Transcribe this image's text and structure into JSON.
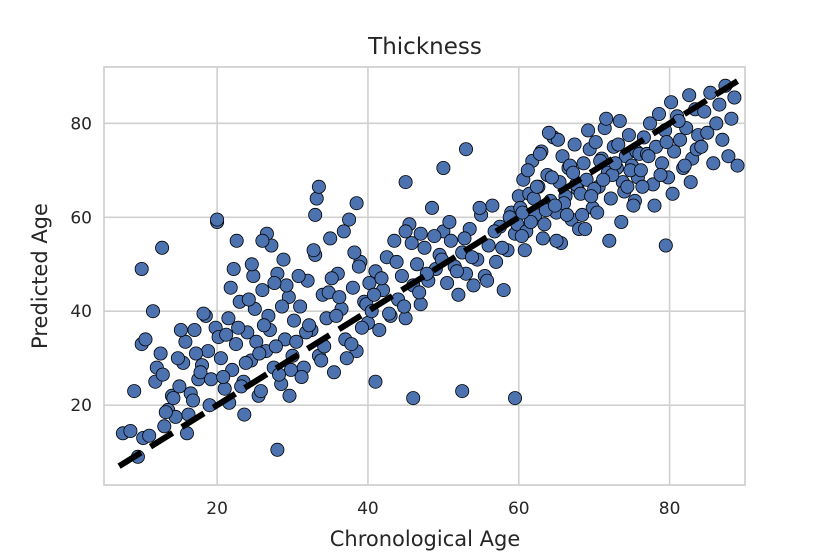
{
  "chart_data": {
    "type": "scatter",
    "title": "Thickness",
    "xlabel": "Chronological Age",
    "ylabel": "Predicted Age",
    "xlim": [
      5,
      90
    ],
    "ylim": [
      3,
      92
    ],
    "xticks": [
      20,
      40,
      60,
      80
    ],
    "yticks": [
      20,
      40,
      60,
      80
    ],
    "grid": true,
    "marker_color": "#4c72b0",
    "marker_edge_color": "#000000",
    "reference_line": {
      "style": "dashed",
      "color": "#000000",
      "x": [
        7,
        89
      ],
      "y": [
        7,
        89
      ]
    },
    "x": [
      7.5,
      8.5,
      9.5,
      10.2,
      11.0,
      11.8,
      12.5,
      13.0,
      13.5,
      14.0,
      14.5,
      15.0,
      15.5,
      16.0,
      16.5,
      17.0,
      17.5,
      18.0,
      18.5,
      19.0,
      9.0,
      10.0,
      12.0,
      13.2,
      14.8,
      15.8,
      16.8,
      17.8,
      18.8,
      19.8,
      10.5,
      11.5,
      12.8,
      14.2,
      15.2,
      16.2,
      17.2,
      18.2,
      19.2,
      20.2,
      20.5,
      21.0,
      21.5,
      22.0,
      22.5,
      23.0,
      23.5,
      24.0,
      24.5,
      25.0,
      25.5,
      26.0,
      26.5,
      27.0,
      27.5,
      28.0,
      28.5,
      29.0,
      29.5,
      30.0,
      20.8,
      21.8,
      22.8,
      23.8,
      24.8,
      25.8,
      26.8,
      27.8,
      28.8,
      29.8,
      21.2,
      22.2,
      23.2,
      24.2,
      25.2,
      26.2,
      27.2,
      28.2,
      29.2,
      30.2,
      20.0,
      22.6,
      24.6,
      26.6,
      28.6,
      21.6,
      23.6,
      25.6,
      27.6,
      29.6,
      30.5,
      31.0,
      31.5,
      32.0,
      32.5,
      33.0,
      33.5,
      34.0,
      34.5,
      35.0,
      35.5,
      36.0,
      36.5,
      37.0,
      37.5,
      38.0,
      38.5,
      39.0,
      39.5,
      40.0,
      30.8,
      31.8,
      32.8,
      33.8,
      34.8,
      35.8,
      36.8,
      37.8,
      38.8,
      39.8,
      31.2,
      32.2,
      33.2,
      34.2,
      35.2,
      36.2,
      37.2,
      38.2,
      39.2,
      40.2,
      40.5,
      41.0,
      41.5,
      42.0,
      42.5,
      43.0,
      43.5,
      44.0,
      44.5,
      45.0,
      45.5,
      46.0,
      46.5,
      47.0,
      47.5,
      48.0,
      48.5,
      49.0,
      49.5,
      50.0,
      40.8,
      41.8,
      42.8,
      43.8,
      44.8,
      45.8,
      46.8,
      47.8,
      48.8,
      49.8,
      50.5,
      51.0,
      51.5,
      52.0,
      52.5,
      53.0,
      53.5,
      54.0,
      54.5,
      55.0,
      55.5,
      56.0,
      56.5,
      57.0,
      57.5,
      58.0,
      58.5,
      59.0,
      59.5,
      60.0,
      50.8,
      51.8,
      52.8,
      53.8,
      54.8,
      55.8,
      56.8,
      57.8,
      58.8,
      59.8,
      60.2,
      60.6,
      61.0,
      61.4,
      61.8,
      62.2,
      62.6,
      63.0,
      63.4,
      63.8,
      64.2,
      64.6,
      65.0,
      65.4,
      65.8,
      66.2,
      66.6,
      67.0,
      67.4,
      67.8,
      60.4,
      61.2,
      62.0,
      62.8,
      63.6,
      64.4,
      65.2,
      66.0,
      66.8,
      67.6,
      60.8,
      61.6,
      62.4,
      63.2,
      64.0,
      64.8,
      65.6,
      66.4,
      67.2,
      68.0,
      68.2,
      68.6,
      69.0,
      69.4,
      69.8,
      70.2,
      70.6,
      71.0,
      71.4,
      71.8,
      72.2,
      72.6,
      73.0,
      73.4,
      73.8,
      74.2,
      74.6,
      75.0,
      75.4,
      75.8,
      68.4,
      69.2,
      70.0,
      70.8,
      71.6,
      72.4,
      73.2,
      74.0,
      74.8,
      75.6,
      68.8,
      69.6,
      70.4,
      71.2,
      72.0,
      72.8,
      73.6,
      74.4,
      75.2,
      76.0,
      76.2,
      76.6,
      77.0,
      77.4,
      77.8,
      78.2,
      78.6,
      79.0,
      79.4,
      79.8,
      80.2,
      80.6,
      81.0,
      81.4,
      81.8,
      82.2,
      82.6,
      83.0,
      83.4,
      83.8,
      76.4,
      77.2,
      78.0,
      78.8,
      79.6,
      80.4,
      81.2,
      82.0,
      82.8,
      83.6,
      84.2,
      84.6,
      85.0,
      85.4,
      85.8,
      86.2,
      86.6,
      87.0,
      87.4,
      87.8,
      88.2,
      88.6,
      89.0,
      10.0,
      12.7,
      20.0,
      28.0,
      33.5,
      33.0,
      46.0,
      45.0,
      50.0,
      52.5,
      53.0,
      59.5,
      45.0,
      60.5,
      65.0,
      79.5,
      47.0,
      41.0,
      38.5,
      26.0
    ],
    "y": [
      14.0,
      14.5,
      9.0,
      13.0,
      13.5,
      25.0,
      31.0,
      15.5,
      19.0,
      22.0,
      17.5,
      24.0,
      29.0,
      14.0,
      22.5,
      36.0,
      25.5,
      28.5,
      39.0,
      20.0,
      23.0,
      33.0,
      28.0,
      18.5,
      30.0,
      33.5,
      21.0,
      27.0,
      31.5,
      36.5,
      34.0,
      40.0,
      26.5,
      21.5,
      36.0,
      18.0,
      31.0,
      39.5,
      25.5,
      34.5,
      30.0,
      23.5,
      38.5,
      27.5,
      33.0,
      42.0,
      25.0,
      35.5,
      29.5,
      40.5,
      22.0,
      44.5,
      31.5,
      36.0,
      28.0,
      48.0,
      24.5,
      34.0,
      43.0,
      30.5,
      26.0,
      45.0,
      36.5,
      29.0,
      47.5,
      23.0,
      39.0,
      32.5,
      51.0,
      27.5,
      35.0,
      49.0,
      24.0,
      42.5,
      33.5,
      37.0,
      54.0,
      26.5,
      45.5,
      38.0,
      59.0,
      55.0,
      50.0,
      56.5,
      41.0,
      20.5,
      18.0,
      31.0,
      46.0,
      22.0,
      33.5,
      41.0,
      28.0,
      46.5,
      36.0,
      52.0,
      30.5,
      43.5,
      38.5,
      55.5,
      27.0,
      48.0,
      40.5,
      34.0,
      59.5,
      45.0,
      31.5,
      50.5,
      42.0,
      37.5,
      47.5,
      35.5,
      53.0,
      29.5,
      44.0,
      39.0,
      57.0,
      33.0,
      49.5,
      41.5,
      26.0,
      37.0,
      64.0,
      32.5,
      47.0,
      43.0,
      30.0,
      52.5,
      36.5,
      46.0,
      40.0,
      48.5,
      36.0,
      44.5,
      51.5,
      39.0,
      55.0,
      42.5,
      47.5,
      38.5,
      58.5,
      45.5,
      50.0,
      41.5,
      53.5,
      46.5,
      62.0,
      49.0,
      52.0,
      57.0,
      43.5,
      47.0,
      39.5,
      50.5,
      41.0,
      54.5,
      44.0,
      48.0,
      56.0,
      51.0,
      46.0,
      55.0,
      49.5,
      43.5,
      52.5,
      48.0,
      57.5,
      45.5,
      51.0,
      60.5,
      47.5,
      54.0,
      62.5,
      50.5,
      58.0,
      44.5,
      53.0,
      61.0,
      56.5,
      64.5,
      59.0,
      48.5,
      55.5,
      51.5,
      62.0,
      46.5,
      57.0,
      53.5,
      60.0,
      58.5,
      62.0,
      68.0,
      57.0,
      65.0,
      72.0,
      60.5,
      66.5,
      74.0,
      58.5,
      69.0,
      63.5,
      77.0,
      61.0,
      67.5,
      73.0,
      64.5,
      70.5,
      59.5,
      75.5,
      66.0,
      56.0,
      70.0,
      64.0,
      73.5,
      61.5,
      68.5,
      76.5,
      63.0,
      71.0,
      67.0,
      53.0,
      59.0,
      66.5,
      55.5,
      78.0,
      62.5,
      54.5,
      60.5,
      69.5,
      57.5,
      65.0,
      71.5,
      68.0,
      74.5,
      62.0,
      76.0,
      66.5,
      72.5,
      79.0,
      69.5,
      64.0,
      75.0,
      70.5,
      80.5,
      67.5,
      73.0,
      77.5,
      71.0,
      63.5,
      68.5,
      60.5,
      78.5,
      66.0,
      72.0,
      81.0,
      69.0,
      75.5,
      65.5,
      70.0,
      74.0,
      57.5,
      64.5,
      61.0,
      68.0,
      55.0,
      71.5,
      59.0,
      66.5,
      62.5,
      73.5,
      70.0,
      77.0,
      73.5,
      80.0,
      67.0,
      75.0,
      82.0,
      71.5,
      78.5,
      68.5,
      84.5,
      74.0,
      81.5,
      76.5,
      70.5,
      79.0,
      86.0,
      72.5,
      83.0,
      77.5,
      66.5,
      73.0,
      62.5,
      69.0,
      76.0,
      65.0,
      80.5,
      71.0,
      67.5,
      74.5,
      75.0,
      82.5,
      78.0,
      86.5,
      71.5,
      80.0,
      84.0,
      76.5,
      88.0,
      73.0,
      81.0,
      85.5,
      71.0,
      49.0,
      53.5,
      59.5,
      10.5,
      66.5,
      60.5,
      21.5,
      67.5,
      70.5,
      23.0,
      74.5,
      21.5,
      57.0,
      61.0,
      55.0,
      54.0,
      56.5,
      25.0,
      63.0,
      55.0
    ]
  }
}
